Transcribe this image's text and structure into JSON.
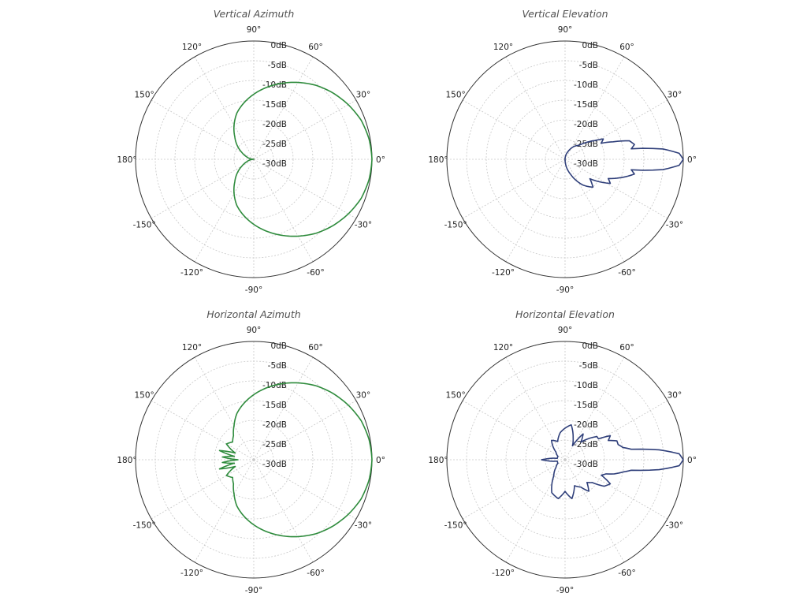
{
  "chart_data": [
    {
      "type": "polar-line",
      "title": "Vertical Azimuth",
      "angle_labels": [
        "0°",
        "30°",
        "60°",
        "90°",
        "120°",
        "150°",
        "180°",
        "-150°",
        "-120°",
        "-90°",
        "-60°",
        "-30°"
      ],
      "radial_labels": [
        "0dB",
        "-5dB",
        "-10dB",
        "-15dB",
        "-20dB",
        "-25dB",
        "-30dB"
      ],
      "rlim_db": [
        -30,
        0
      ],
      "grid": true,
      "color": "#2e8b3c",
      "series": [
        {
          "theta_deg": [
            0,
            10,
            20,
            30,
            40,
            50,
            60,
            70,
            80,
            90,
            100,
            110,
            120,
            130,
            140,
            150,
            160,
            170,
            180,
            190,
            200,
            210,
            220,
            230,
            240,
            250,
            260,
            270,
            280,
            290,
            300,
            310,
            320,
            330,
            340,
            350
          ],
          "gain_db": [
            0,
            -0.3,
            -1,
            -2.3,
            -3.8,
            -5.5,
            -7.5,
            -9.5,
            -11.5,
            -13.5,
            -15.5,
            -17.5,
            -20,
            -22.5,
            -24.5,
            -26.5,
            -28,
            -29,
            -30,
            -29,
            -28,
            -26.5,
            -24.5,
            -22.5,
            -20,
            -17.5,
            -15.5,
            -13.5,
            -11.5,
            -9.5,
            -7.5,
            -5.5,
            -3.8,
            -2.3,
            -1,
            -0.3
          ]
        }
      ]
    },
    {
      "type": "polar-line",
      "title": "Vertical Elevation",
      "angle_labels": [
        "0°",
        "30°",
        "60°",
        "90°",
        "120°",
        "150°",
        "180°",
        "-150°",
        "-120°",
        "-90°",
        "-60°",
        "-30°"
      ],
      "radial_labels": [
        "0dB",
        "-5dB",
        "-10dB",
        "-15dB",
        "-20dB",
        "-25dB",
        "-30dB"
      ],
      "rlim_db": [
        -30,
        0
      ],
      "grid": true,
      "color": "#2f3f7a",
      "series": [
        {
          "theta_deg": [
            0,
            3,
            6,
            8,
            9,
            12,
            16,
            20,
            24,
            28,
            32,
            38,
            45,
            55,
            70,
            90,
            120,
            150,
            180,
            210,
            240,
            270,
            290,
            305,
            315,
            322,
            328,
            332,
            336,
            340,
            344,
            348,
            351,
            352,
            354,
            357
          ],
          "gain_db": [
            0,
            -1,
            -5,
            -10,
            -13,
            -12,
            -13,
            -17,
            -20,
            -19,
            -21,
            -23,
            -25,
            -26,
            -28,
            -30,
            -30,
            -30,
            -30,
            -30,
            -30,
            -30,
            -26,
            -22,
            -20,
            -22,
            -19,
            -17,
            -18,
            -16,
            -14,
            -12,
            -13,
            -10,
            -5,
            -1
          ]
        }
      ]
    },
    {
      "type": "polar-line",
      "title": "Horizontal Azimuth",
      "angle_labels": [
        "0°",
        "30°",
        "60°",
        "90°",
        "120°",
        "150°",
        "180°",
        "-150°",
        "-120°",
        "-90°",
        "-60°",
        "-30°"
      ],
      "radial_labels": [
        "0dB",
        "-5dB",
        "-10dB",
        "-15dB",
        "-20dB",
        "-25dB",
        "-30dB"
      ],
      "rlim_db": [
        -30,
        0
      ],
      "grid": true,
      "color": "#2e8b3c",
      "series": [
        {
          "theta_deg": [
            0,
            10,
            20,
            30,
            40,
            50,
            60,
            70,
            80,
            90,
            100,
            110,
            120,
            130,
            140,
            150,
            160,
            165,
            170,
            175,
            180,
            185,
            190,
            195,
            200,
            210,
            220,
            230,
            240,
            250,
            260,
            270,
            280,
            290,
            300,
            310,
            320,
            330,
            340,
            350
          ],
          "gain_db": [
            0,
            -0.3,
            -1,
            -2.3,
            -3.8,
            -5.5,
            -7.5,
            -9.5,
            -11.5,
            -13.5,
            -15.5,
            -17.5,
            -20,
            -22,
            -23,
            -22,
            -25,
            -21,
            -25,
            -22,
            -26,
            -22,
            -25,
            -21,
            -25,
            -22,
            -23,
            -22,
            -20,
            -17.5,
            -15.5,
            -13.5,
            -11.5,
            -9.5,
            -7.5,
            -5.5,
            -3.8,
            -2.3,
            -1,
            -0.3
          ]
        }
      ]
    },
    {
      "type": "polar-line",
      "title": "Horizontal Elevation",
      "angle_labels": [
        "0°",
        "30°",
        "60°",
        "90°",
        "120°",
        "150°",
        "180°",
        "-150°",
        "-120°",
        "-90°",
        "-60°",
        "-30°"
      ],
      "radial_labels": [
        "0dB",
        "-5dB",
        "-10dB",
        "-15dB",
        "-20dB",
        "-25dB",
        "-30dB"
      ],
      "rlim_db": [
        -30,
        0
      ],
      "grid": true,
      "color": "#2f3f7a",
      "series": [
        {
          "theta_deg": [
            0,
            3,
            6,
            9,
            12,
            16,
            20,
            24,
            28,
            32,
            36,
            42,
            48,
            55,
            62,
            70,
            80,
            90,
            100,
            112,
            125,
            140,
            155,
            170,
            178,
            180,
            182,
            190,
            205,
            220,
            235,
            248,
            260,
            270,
            280,
            290,
            300,
            307,
            314,
            320,
            326,
            332,
            337,
            341,
            344,
            348,
            351,
            354,
            357
          ],
          "gain_db": [
            0,
            -1,
            -6,
            -13,
            -15,
            -16,
            -16,
            -18,
            -17,
            -20,
            -20,
            -22,
            -24,
            -22,
            -26,
            -24,
            -21,
            -22,
            -23,
            -25,
            -24,
            -27,
            -28,
            -28,
            -25,
            -24,
            -25,
            -28,
            -28,
            -27,
            -25,
            -21,
            -20,
            -22,
            -20,
            -23,
            -22,
            -20,
            -22,
            -21,
            -18,
            -17,
            -20,
            -19,
            -17,
            -15,
            -13,
            -6,
            -1
          ]
        }
      ]
    }
  ]
}
